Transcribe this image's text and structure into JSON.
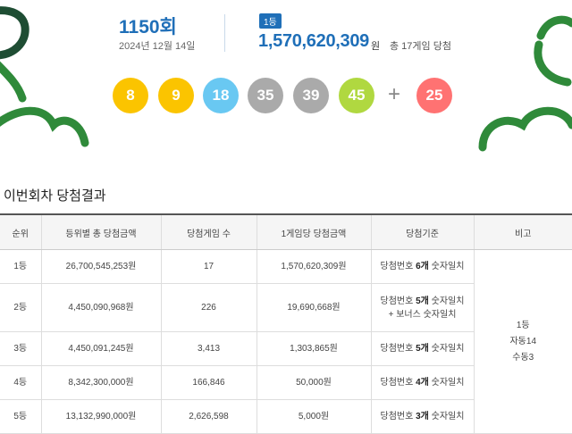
{
  "draw": {
    "number": "1150회",
    "date": "2024년 12월 14일",
    "rank_badge": "1등",
    "prize_amount": "1,570,620,309",
    "prize_unit": "원",
    "prize_note": "총 17게임 당첨",
    "balls": [
      {
        "number": "8",
        "color": "#fbc400"
      },
      {
        "number": "9",
        "color": "#fbc400"
      },
      {
        "number": "18",
        "color": "#69c8f2"
      },
      {
        "number": "35",
        "color": "#aaaaaa"
      },
      {
        "number": "39",
        "color": "#aaaaaa"
      },
      {
        "number": "45",
        "color": "#b0d840"
      }
    ],
    "plus": "+",
    "bonus_ball": {
      "number": "25",
      "color": "#ff7272"
    }
  },
  "results": {
    "title": "이번회차 당첨결과",
    "headers": [
      "순위",
      "등위별 총 당첨금액",
      "당첨게임 수",
      "1게임당 당첨금액",
      "당첨기준",
      "비고"
    ],
    "rows": [
      {
        "rank": "1등",
        "total": "26,700,545,253원",
        "games": "17",
        "per_game": "1,570,620,309원",
        "criteria_pre": "당첨번호 ",
        "criteria_hl": "6개",
        "criteria_post": " 숫자일치",
        "criteria_line2": ""
      },
      {
        "rank": "2등",
        "total": "4,450,090,968원",
        "games": "226",
        "per_game": "19,690,668원",
        "criteria_pre": "당첨번호 ",
        "criteria_hl": "5개",
        "criteria_post": " 숫자일치",
        "criteria_line2": "+ 보너스 숫자일치"
      },
      {
        "rank": "3등",
        "total": "4,450,091,245원",
        "games": "3,413",
        "per_game": "1,303,865원",
        "criteria_pre": "당첨번호 ",
        "criteria_hl": "5개",
        "criteria_post": " 숫자일치",
        "criteria_line2": ""
      },
      {
        "rank": "4등",
        "total": "8,342,300,000원",
        "games": "166,846",
        "per_game": "50,000원",
        "criteria_pre": "당첨번호 ",
        "criteria_hl": "4개",
        "criteria_post": " 숫자일치",
        "criteria_line2": ""
      },
      {
        "rank": "5등",
        "total": "13,132,990,000원",
        "games": "2,626,598",
        "per_game": "5,000원",
        "criteria_pre": "당첨번호 ",
        "criteria_hl": "3개",
        "criteria_post": " 숫자일치",
        "criteria_line2": ""
      }
    ],
    "note_lines": [
      "1등",
      "자동14",
      "수동3"
    ]
  },
  "decor_color": "#2f8a3a"
}
